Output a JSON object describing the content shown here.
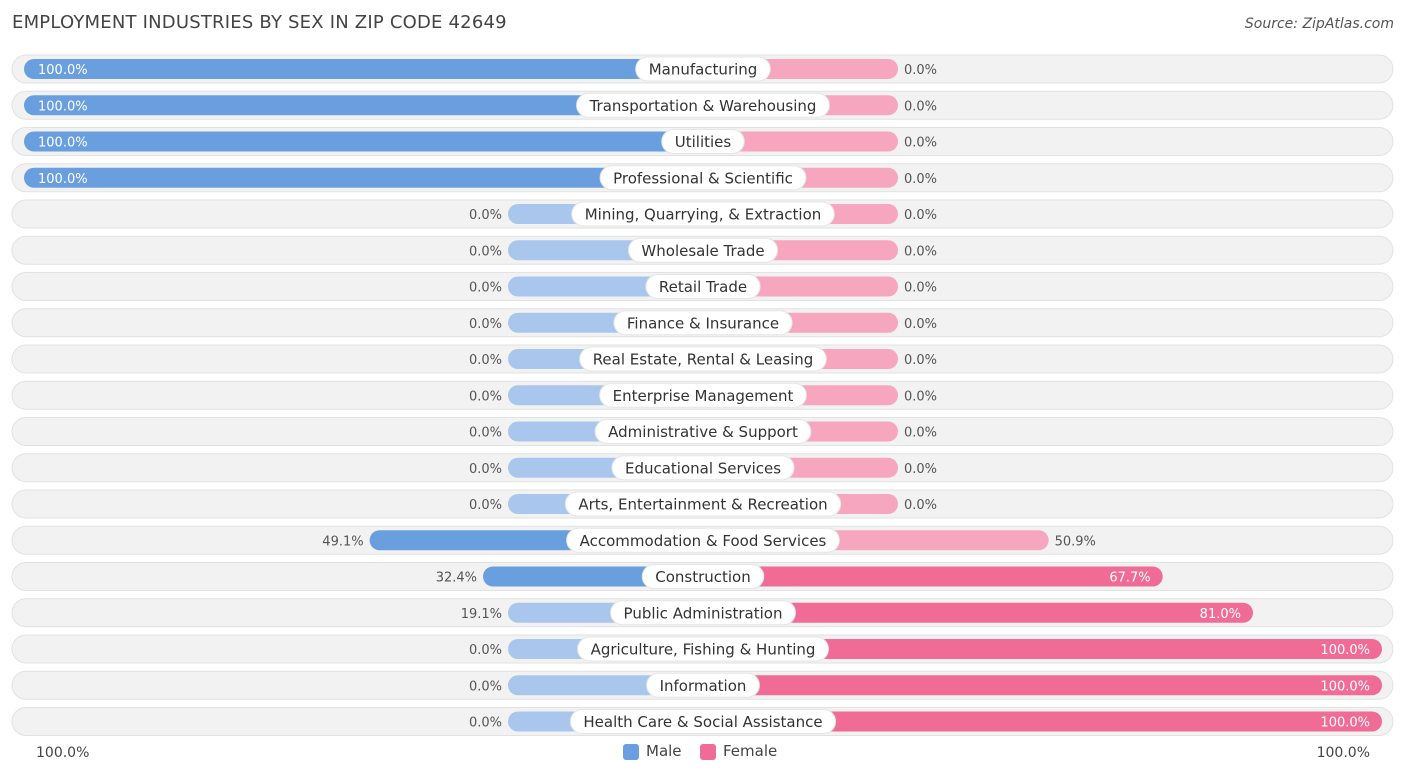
{
  "title": "EMPLOYMENT INDUSTRIES BY SEX IN ZIP CODE 42649",
  "source": "Source: ZipAtlas.com",
  "colors": {
    "male": "#6a9fdf",
    "male_light": "#a9c6ec",
    "female": "#f06c96",
    "female_light": "#f7a6c0",
    "track": "#f2f2f2"
  },
  "legend": {
    "male_label": "Male",
    "female_label": "Female"
  },
  "axis": {
    "left_label": "100.0%",
    "right_label": "100.0%"
  },
  "chart_data": {
    "type": "bar",
    "orientation": "horizontal-diverging",
    "title": "EMPLOYMENT INDUSTRIES BY SEX IN ZIP CODE 42649",
    "categories": [
      "Manufacturing",
      "Transportation & Warehousing",
      "Utilities",
      "Professional & Scientific",
      "Mining, Quarrying, & Extraction",
      "Wholesale Trade",
      "Retail Trade",
      "Finance & Insurance",
      "Real Estate, Rental & Leasing",
      "Enterprise Management",
      "Administrative & Support",
      "Educational Services",
      "Arts, Entertainment & Recreation",
      "Accommodation & Food Services",
      "Construction",
      "Public Administration",
      "Agriculture, Fishing & Hunting",
      "Information",
      "Health Care & Social Assistance"
    ],
    "series": [
      {
        "name": "Male",
        "values": [
          100.0,
          100.0,
          100.0,
          100.0,
          0.0,
          0.0,
          0.0,
          0.0,
          0.0,
          0.0,
          0.0,
          0.0,
          0.0,
          49.1,
          32.4,
          19.1,
          0.0,
          0.0,
          0.0
        ],
        "labels": [
          "100.0%",
          "100.0%",
          "100.0%",
          "100.0%",
          "0.0%",
          "0.0%",
          "0.0%",
          "0.0%",
          "0.0%",
          "0.0%",
          "0.0%",
          "0.0%",
          "0.0%",
          "49.1%",
          "32.4%",
          "19.1%",
          "0.0%",
          "0.0%",
          "0.0%"
        ]
      },
      {
        "name": "Female",
        "values": [
          0.0,
          0.0,
          0.0,
          0.0,
          0.0,
          0.0,
          0.0,
          0.0,
          0.0,
          0.0,
          0.0,
          0.0,
          0.0,
          50.9,
          67.7,
          81.0,
          100.0,
          100.0,
          100.0
        ],
        "labels": [
          "0.0%",
          "0.0%",
          "0.0%",
          "0.0%",
          "0.0%",
          "0.0%",
          "0.0%",
          "0.0%",
          "0.0%",
          "0.0%",
          "0.0%",
          "0.0%",
          "0.0%",
          "50.9%",
          "67.7%",
          "81.0%",
          "100.0%",
          "100.0%",
          "100.0%"
        ]
      }
    ],
    "xlim": [
      -100,
      100
    ],
    "legend_position": "bottom-center"
  }
}
